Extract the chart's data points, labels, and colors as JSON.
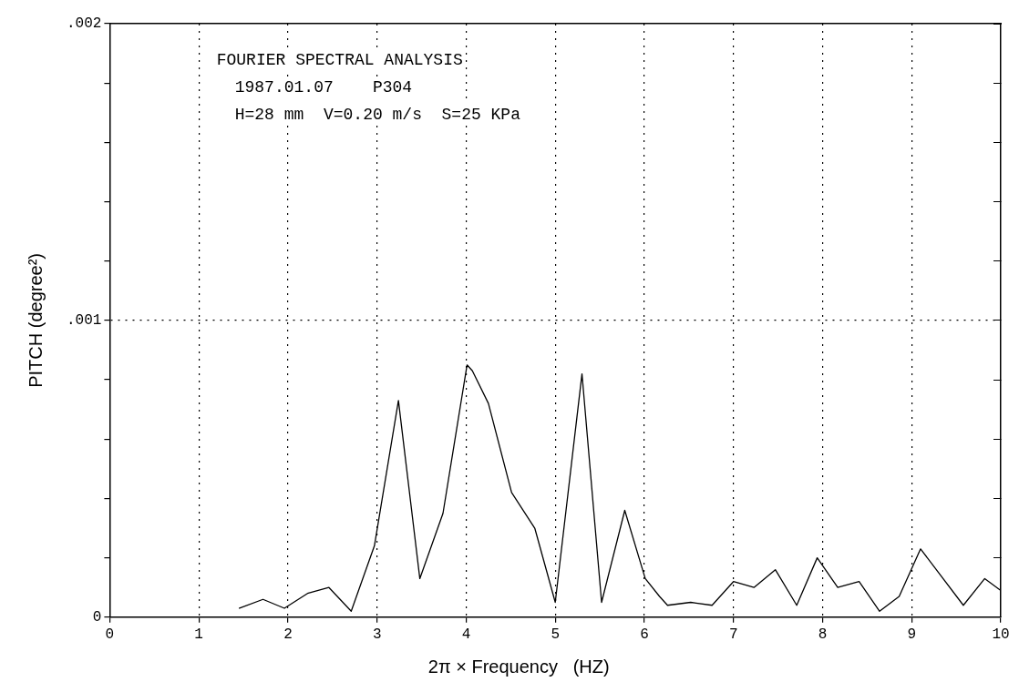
{
  "chart_data": {
    "type": "line",
    "title": "FOURIER SPECTRAL ANALYSIS",
    "subtitle": "1987.01.07    P304",
    "annotations": [
      "H=28 mm  V=0.20 m/s  S=25 KPa"
    ],
    "xlabel": "2π × Frequency   (HZ)",
    "ylabel": "PITCH (degree²)",
    "series": [
      {
        "color": "#000000",
        "x": [
          1.45,
          1.72,
          1.96,
          2.22,
          2.46,
          2.71,
          2.97,
          3.24,
          3.48,
          3.74,
          4.01,
          4.07,
          4.25,
          4.51,
          4.77,
          5.0,
          5.3,
          5.52,
          5.78,
          6.01,
          6.17,
          6.26,
          6.52,
          6.76,
          7.0,
          7.23,
          7.47,
          7.71,
          7.94,
          8.17,
          8.41,
          8.64,
          8.86,
          9.1,
          9.58,
          9.82,
          10.0
        ],
        "values": [
          3e-05,
          6e-05,
          3e-05,
          8e-05,
          0.0001,
          2e-05,
          0.00024,
          0.00073,
          0.00013,
          0.00035,
          0.00085,
          0.00083,
          0.00072,
          0.00042,
          0.0003,
          5e-05,
          0.00082,
          5e-05,
          0.00036,
          0.00013,
          7e-05,
          4e-05,
          5e-05,
          4e-05,
          0.00012,
          0.0001,
          0.00016,
          4e-05,
          0.0002,
          0.0001,
          0.00012,
          2e-05,
          7e-05,
          0.00023,
          4e-05,
          0.00013,
          9e-05
        ]
      }
    ],
    "xlim": [
      0,
      10
    ],
    "xticks": [
      0,
      1,
      2,
      3,
      4,
      5,
      6,
      7,
      8,
      9,
      10
    ],
    "ylim": [
      0,
      0.002
    ],
    "yticks": [
      0,
      {
        "value": 0.0002,
        "label": null
      },
      {
        "value": 0.0004,
        "label": null
      },
      {
        "value": 0.0006,
        "label": null
      },
      {
        "value": 0.0008,
        "label": null
      },
      {
        "value": 0.001,
        "label": ".001"
      },
      {
        "value": 0.0012,
        "label": null
      },
      {
        "value": 0.0014,
        "label": null
      },
      {
        "value": 0.0016,
        "label": null
      },
      {
        "value": 0.0018,
        "label": null
      },
      {
        "value": 0.002,
        "label": ".002"
      }
    ],
    "grid": true,
    "marker": "none",
    "line_style": "solid",
    "legend": false
  }
}
